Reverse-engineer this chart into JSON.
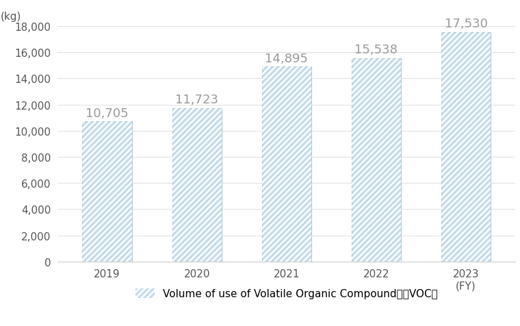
{
  "categories": [
    "2019",
    "2020",
    "2021",
    "2022",
    "2023\n(FY)"
  ],
  "values": [
    10705,
    11723,
    14895,
    15538,
    17530
  ],
  "bar_color": "#c5dcea",
  "hatch_color": "#ffffff",
  "bar_edge_color": "#b0ccd9",
  "label_color": "#999999",
  "kg_label": "(kg)",
  "ylim": [
    0,
    18000
  ],
  "yticks": [
    0,
    2000,
    4000,
    6000,
    8000,
    10000,
    12000,
    14000,
    16000,
    18000
  ],
  "legend_label": "Volume of use of Volatile Organic Compound　（VOC）",
  "value_labels": [
    "10,705",
    "11,723",
    "14,895",
    "15,538",
    "17,530"
  ],
  "background_color": "#ffffff",
  "grid_color": "#e0e0e0",
  "value_fontsize": 13,
  "tick_fontsize": 11,
  "legend_fontsize": 11,
  "bar_width": 0.55
}
